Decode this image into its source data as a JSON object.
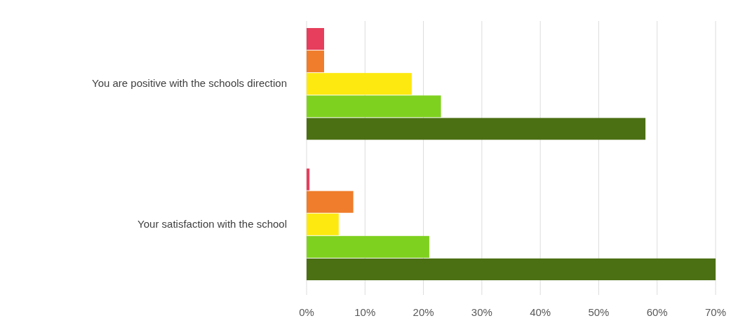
{
  "chart_data": {
    "type": "bar",
    "orientation": "horizontal",
    "categories": [
      "You are positive with the schools direction",
      "Your satisfaction with the school"
    ],
    "series": [
      {
        "color": "#e63e5c",
        "values": [
          3,
          0.5
        ]
      },
      {
        "color": "#ef7d2b",
        "values": [
          3,
          8
        ]
      },
      {
        "color": "#fde910",
        "values": [
          18,
          5.5
        ]
      },
      {
        "color": "#7fd11f",
        "values": [
          23,
          21
        ]
      },
      {
        "color": "#4b6f13",
        "values": [
          58,
          70
        ]
      }
    ],
    "xlim": [
      0,
      70
    ],
    "xticks": [
      {
        "value": 0,
        "label": "0%"
      },
      {
        "value": 10,
        "label": "10%"
      },
      {
        "value": 20,
        "label": "20%"
      },
      {
        "value": 30,
        "label": "30%"
      },
      {
        "value": 40,
        "label": "40%"
      },
      {
        "value": 50,
        "label": "50%"
      },
      {
        "value": 60,
        "label": "60%"
      },
      {
        "value": 70,
        "label": "70%"
      }
    ],
    "grid": "x"
  }
}
